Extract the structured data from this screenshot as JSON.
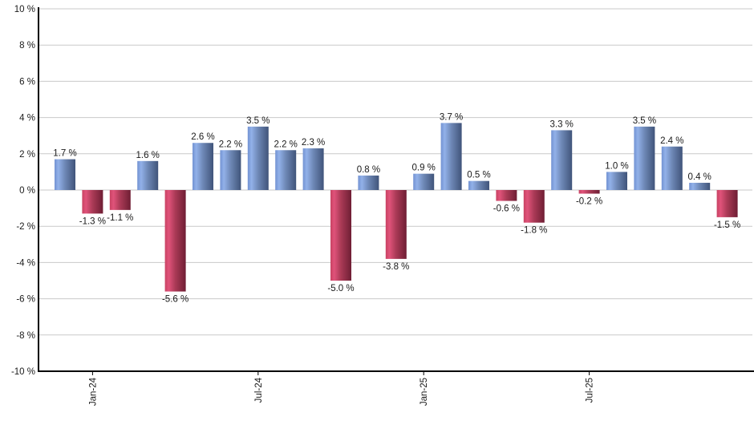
{
  "chart_data": {
    "type": "bar",
    "title": "",
    "xlabel": "",
    "ylabel": "",
    "unit": "%",
    "grid": true,
    "legend_position": "none",
    "ylim": [
      -10,
      10
    ],
    "y_tick_step": 2,
    "values": [
      1.7,
      -1.3,
      -1.1,
      1.6,
      -5.6,
      2.6,
      2.2,
      3.5,
      2.2,
      2.3,
      -5.0,
      0.8,
      -3.8,
      0.9,
      3.7,
      0.5,
      -0.6,
      -1.8,
      3.3,
      -0.2,
      1.0,
      3.5,
      2.4,
      0.4,
      -1.5
    ],
    "value_labels": [
      "1.7 %",
      "-1.3 %",
      "-1.1 %",
      "1.6 %",
      "-5.6 %",
      "2.6 %",
      "2.2 %",
      "3.5 %",
      "2.2 %",
      "2.3 %",
      "-5.0 %",
      "0.8 %",
      "-3.8 %",
      "0.9 %",
      "3.7 %",
      "0.5 %",
      "-0.6 %",
      "-1.8 %",
      "3.3 %",
      "-0.2 %",
      "1.0 %",
      "3.5 %",
      "2.4 %",
      "0.4 %",
      "-1.5 %"
    ],
    "x_ticks": [
      {
        "index": 1,
        "label": "Jan-24"
      },
      {
        "index": 7,
        "label": "Jul-24"
      },
      {
        "index": 13,
        "label": "Jan-25"
      },
      {
        "index": 19,
        "label": "Jul-25"
      }
    ],
    "y_ticks": [
      {
        "value": 10,
        "label": "10 %"
      },
      {
        "value": 8,
        "label": "8 %"
      },
      {
        "value": 6,
        "label": "6 %"
      },
      {
        "value": 4,
        "label": "4 %"
      },
      {
        "value": 2,
        "label": "2 %"
      },
      {
        "value": 0,
        "label": "0 %"
      },
      {
        "value": -2,
        "label": "-2 %"
      },
      {
        "value": -4,
        "label": "-4 %"
      },
      {
        "value": -6,
        "label": "-6 %"
      },
      {
        "value": -8,
        "label": "-8 %"
      },
      {
        "value": -10,
        "label": "-10 %"
      }
    ],
    "colors": {
      "positive_bar_stops": [
        [
          "0%",
          "#7292d2"
        ],
        [
          "18%",
          "#92b1e9"
        ],
        [
          "50%",
          "#6e88b6"
        ],
        [
          "100%",
          "#40547a"
        ]
      ],
      "negative_bar_stops": [
        [
          "0%",
          "#c84263"
        ],
        [
          "18%",
          "#e0537a"
        ],
        [
          "50%",
          "#aa3a56"
        ],
        [
          "100%",
          "#6f1e34"
        ]
      ],
      "gridline": "#c9c9c9",
      "axis": "#000000",
      "label_text": "#1a1a1a"
    }
  }
}
